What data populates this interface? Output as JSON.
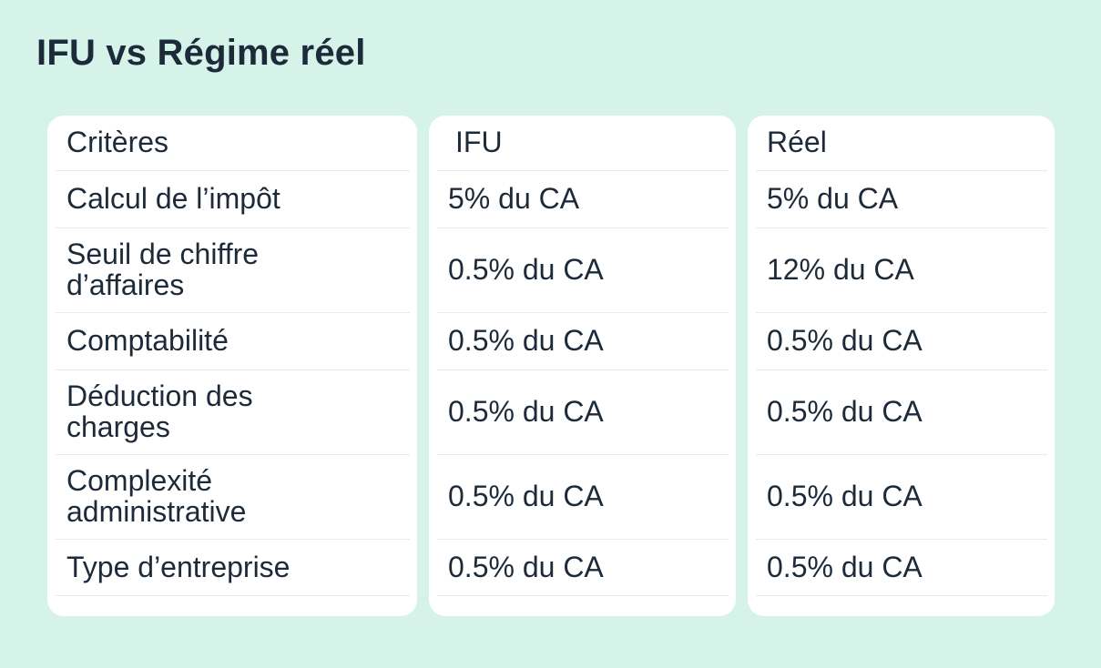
{
  "page": {
    "title": "IFU vs Régime réel",
    "background_color": "#d6f3ea",
    "card_color": "#ffffff",
    "text_color": "#1c2a3a",
    "divider_color": "#e8eaec"
  },
  "table": {
    "columns": [
      {
        "header": "Critères",
        "rows": [
          "Calcul de l’impôt",
          "Seuil de chiffre d’affaires",
          "Comptabilité",
          "Déduction des charges",
          "Complexité administrative",
          "Type d’entreprise"
        ]
      },
      {
        "header": "IFU",
        "rows": [
          "5% du CA",
          "0.5% du CA",
          "0.5% du CA",
          "0.5% du CA",
          "0.5% du CA",
          "0.5% du CA"
        ]
      },
      {
        "header": "Réel",
        "rows": [
          "5% du CA",
          "12% du CA",
          "0.5% du CA",
          "0.5% du CA",
          "0.5% du CA",
          "0.5% du CA"
        ]
      }
    ]
  }
}
